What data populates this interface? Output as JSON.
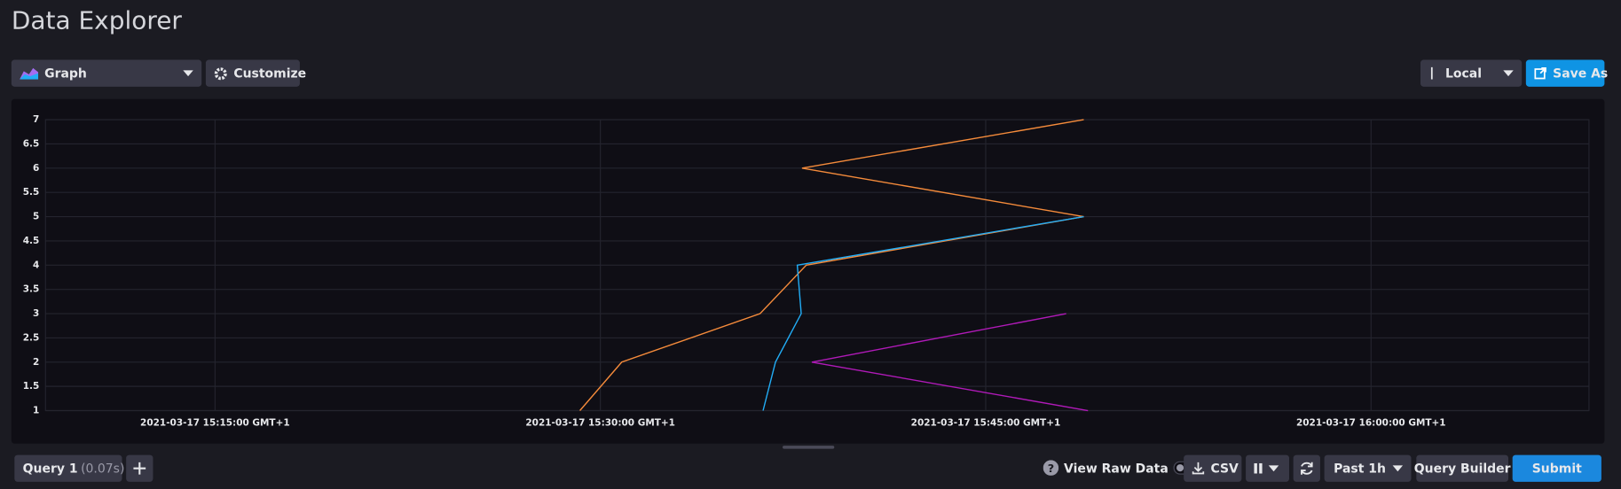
{
  "header": {
    "title": "Data Explorer"
  },
  "toolbar": {
    "view_type": "Graph",
    "customize": "Customize",
    "timezone": "Local",
    "save_as": "Save As"
  },
  "footer": {
    "query_tab": "Query 1",
    "query_time": "(0.07s)",
    "view_raw": "View Raw Data",
    "csv": "CSV",
    "time_range": "Past 1h",
    "query_builder": "Query Builder",
    "submit": "Submit"
  },
  "chart_data": {
    "type": "line",
    "xlim": [
      "2021-03-17 15:08:24",
      "2021-03-17 16:08:29"
    ],
    "xticks": [
      {
        "value": "2021-03-17 15:15:00",
        "label": "2021-03-17 15:15:00 GMT+1"
      },
      {
        "value": "2021-03-17 15:30:00",
        "label": "2021-03-17 15:30:00 GMT+1"
      },
      {
        "value": "2021-03-17 15:45:00",
        "label": "2021-03-17 15:45:00 GMT+1"
      },
      {
        "value": "2021-03-17 16:00:00",
        "label": "2021-03-17 16:00:00 GMT+1"
      }
    ],
    "ylim": [
      1,
      7
    ],
    "yticks": [
      1,
      1.5,
      2,
      2.5,
      3,
      3.5,
      4,
      4.5,
      5,
      5.5,
      6,
      6.5,
      7
    ],
    "grid": true,
    "series": [
      {
        "color": "#f58b3b",
        "x": [
          "2021-03-17 15:29:12",
          "2021-03-17 15:30:50",
          "2021-03-17 15:36:13",
          "2021-03-17 15:38:01",
          "2021-03-17 15:48:49",
          "2021-03-17 15:37:51",
          "2021-03-17 15:48:49"
        ],
        "values": [
          1,
          2,
          3,
          4,
          5,
          6,
          7
        ]
      },
      {
        "color": "#22adf6",
        "x": [
          "2021-03-17 15:36:20",
          "2021-03-17 15:36:49",
          "2021-03-17 15:37:49",
          "2021-03-17 15:37:40",
          "2021-03-17 15:48:49"
        ],
        "values": [
          1,
          2,
          3,
          4,
          5
        ]
      },
      {
        "color": "#b01ab8",
        "x": [
          "2021-03-17 15:48:59",
          "2021-03-17 15:38:14",
          "2021-03-17 15:48:08"
        ],
        "values": [
          1,
          2,
          3
        ]
      }
    ]
  }
}
